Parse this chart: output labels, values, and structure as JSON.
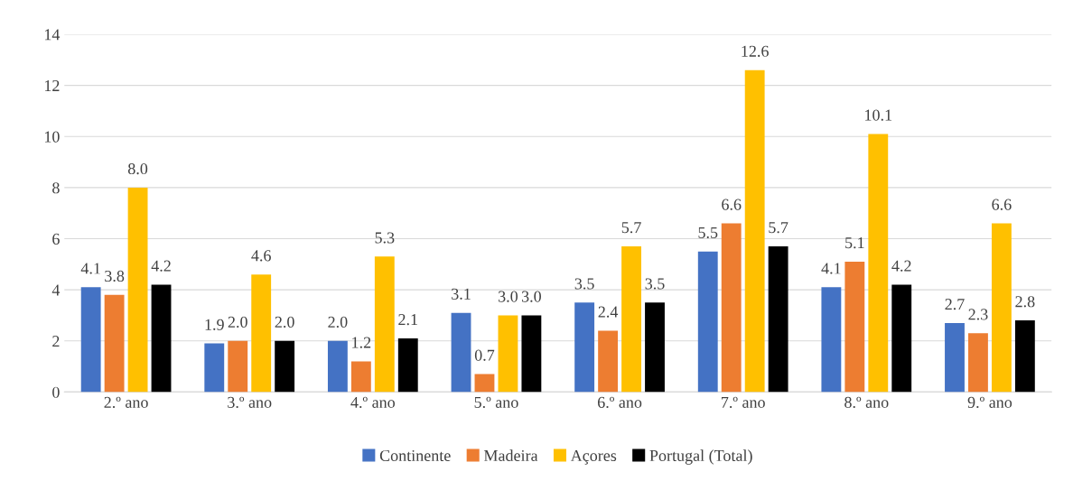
{
  "chart_data": {
    "type": "bar",
    "categories": [
      "2.º ano",
      "3.º ano",
      "4.º ano",
      "5.º ano",
      "6.º ano",
      "7.º ano",
      "8.º ano",
      "9.º ano"
    ],
    "series": [
      {
        "name": "Continente",
        "color": "#4472c4",
        "values": [
          4.1,
          1.9,
          2.0,
          3.1,
          3.5,
          5.5,
          4.1,
          2.7
        ],
        "value_labels": [
          "4.1",
          "1.9",
          "2.0",
          "3.1",
          "3.5",
          "5.5",
          "4.1",
          "2.7"
        ]
      },
      {
        "name": "Madeira",
        "color": "#ed7d31",
        "values": [
          3.8,
          2.0,
          1.2,
          0.7,
          2.4,
          6.6,
          5.1,
          2.3
        ],
        "value_labels": [
          "3.8",
          "2.0",
          "1.2",
          "0.7",
          "2.4",
          "6.6",
          "5.1",
          "2.3"
        ]
      },
      {
        "name": "Açores",
        "color": "#ffc000",
        "values": [
          8.0,
          4.6,
          5.3,
          3.0,
          5.7,
          12.6,
          10.1,
          6.6
        ],
        "value_labels": [
          "8.0",
          "4.6",
          "5.3",
          "3.0",
          "5.7",
          "12.6",
          "10.1",
          "6.6"
        ]
      },
      {
        "name": "Portugal (Total)",
        "color": "#000000",
        "values": [
          4.2,
          2.0,
          2.1,
          3.0,
          3.5,
          5.7,
          4.2,
          2.8
        ],
        "value_labels": [
          "4.2",
          "2.0",
          "2.1",
          "3.0",
          "3.5",
          "5.7",
          "4.2",
          "2.8"
        ]
      }
    ],
    "ylim": [
      0,
      14
    ],
    "yticks": [
      0,
      2,
      4,
      6,
      8,
      10,
      12,
      14
    ],
    "grid": "y",
    "legend": "bottom"
  }
}
